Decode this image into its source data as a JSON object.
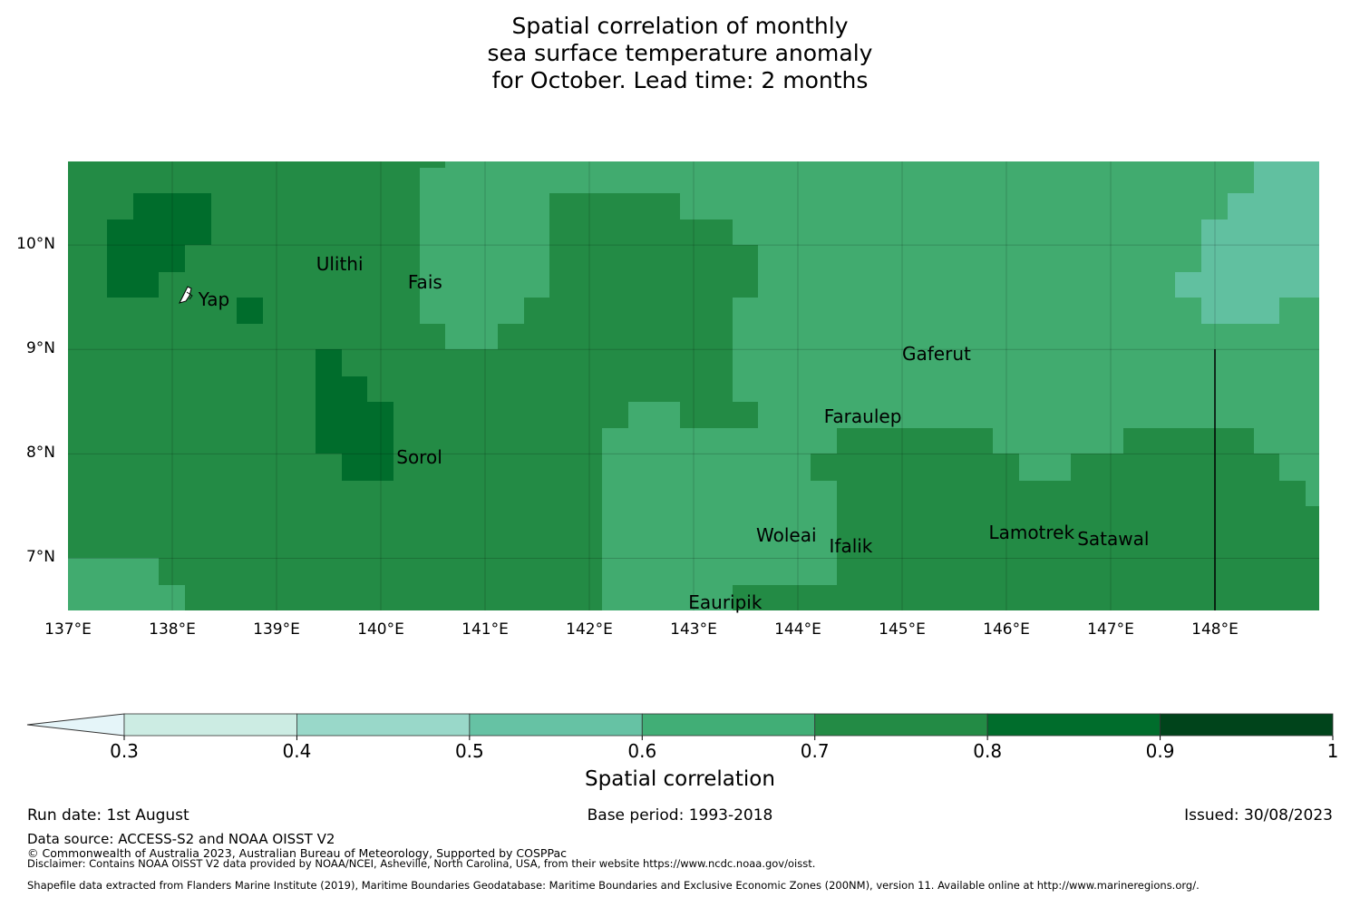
{
  "title": {
    "line1": "Spatial correlation of monthly",
    "line2": "sea surface temperature anomaly",
    "line3": "for October. Lead time: 2 months"
  },
  "map": {
    "lon_labels": [
      "137°E",
      "138°E",
      "139°E",
      "140°E",
      "141°E",
      "142°E",
      "143°E",
      "144°E",
      "145°E",
      "146°E",
      "147°E",
      "148°E"
    ],
    "lat_labels": [
      "10°N",
      "9°N",
      "8°N",
      "7°N"
    ],
    "lon_range": [
      137,
      149
    ],
    "lat_range": [
      6.5,
      10.8
    ],
    "islands": [
      {
        "name": "Ulithi",
        "lon": 139.38,
        "lat": 9.8
      },
      {
        "name": "Fais",
        "lon": 140.26,
        "lat": 9.63
      },
      {
        "name": "Yap",
        "lon": 138.25,
        "lat": 9.46
      },
      {
        "name": "Gaferut",
        "lon": 145.0,
        "lat": 8.94
      },
      {
        "name": "Faraulep",
        "lon": 144.25,
        "lat": 8.34
      },
      {
        "name": "Sorol",
        "lon": 140.15,
        "lat": 7.95
      },
      {
        "name": "Woleai",
        "lon": 143.6,
        "lat": 7.2
      },
      {
        "name": "Ifalik",
        "lon": 144.3,
        "lat": 7.1
      },
      {
        "name": "Lamotrek",
        "lon": 145.83,
        "lat": 7.23
      },
      {
        "name": "Satawal",
        "lon": 146.68,
        "lat": 7.17
      },
      {
        "name": "Eauripik",
        "lon": 142.95,
        "lat": 6.56
      }
    ],
    "colors": {
      "c06": "#41ab6f",
      "c07": "#238b45",
      "c08": "#006d2c",
      "c05": "#61c0a0"
    }
  },
  "colorbar": {
    "ticks": [
      "0.3",
      "0.4",
      "0.5",
      "0.6",
      "0.7",
      "0.8",
      "0.9",
      "1"
    ],
    "colors": [
      "#ccece3",
      "#99d8c9",
      "#66c2a4",
      "#41ae76",
      "#238b45",
      "#006d2c",
      "#00441b"
    ],
    "extend_color": "#e5f5f9",
    "label": "Spatial correlation"
  },
  "footer": {
    "run_date": "Run date: 1st August",
    "base_period": "Base period: 1993-2018",
    "issued": "Issued: 30/08/2023",
    "data_source": "Data source: ACCESS-S2 and NOAA OISST V2",
    "copyright": "© Commonwealth of Australia 2023, Australian Bureau of Meteorology, Supported by COSPPac",
    "disclaimer": "Disclaimer: Contains NOAA OISST V2 data provided by NOAA/NCEI, Asheville, North Carolina, USA, from their website https://www.ncdc.noaa.gov/oisst.",
    "shapefile": "Shapefile data extracted from Flanders Marine Institute (2019), Maritime Boundaries Geodatabase: Maritime Boundaries and Exclusive Economic Zones (200NM), version 11. Available online at http://www.marineregions.org/."
  }
}
